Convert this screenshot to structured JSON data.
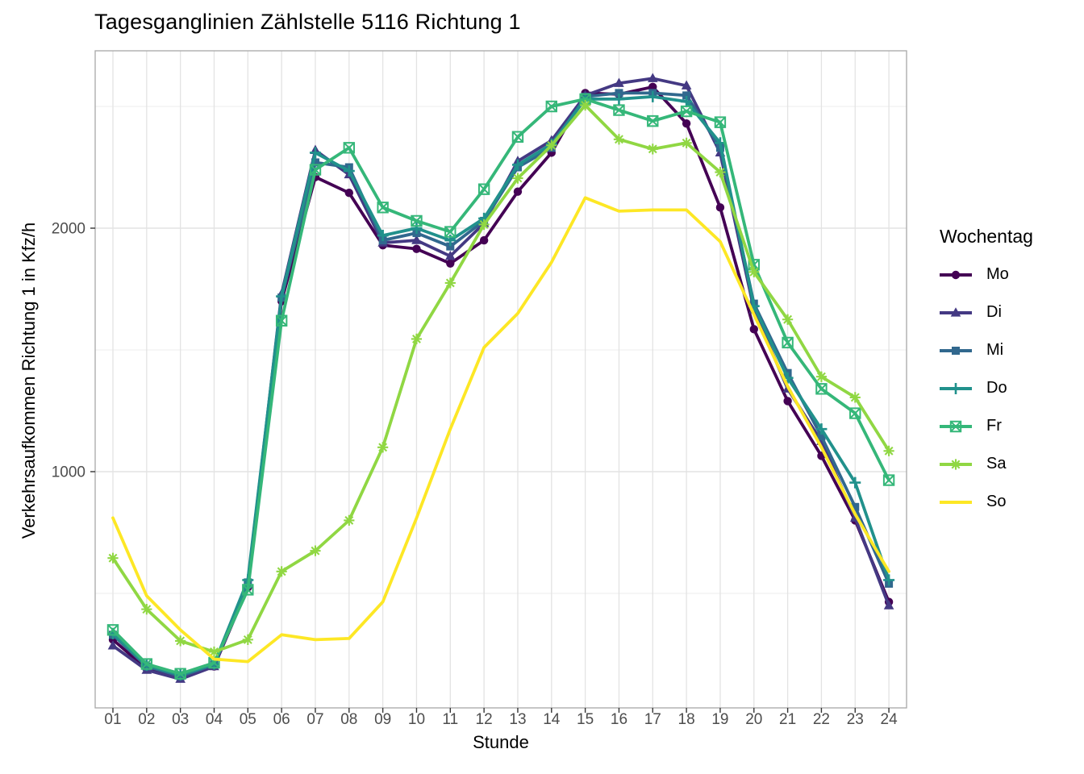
{
  "title": "Tagesganglinien Zählstelle 5116 Richtung 1",
  "chart_data": {
    "type": "line",
    "title": "Tagesganglinien Zählstelle 5116 Richtung 1",
    "xlabel": "Stunde",
    "ylabel": "Verkehrsaufkommen Richtung 1 in Kfz/h",
    "x_tick_labels": [
      "01",
      "02",
      "03",
      "04",
      "05",
      "06",
      "07",
      "08",
      "09",
      "10",
      "11",
      "12",
      "13",
      "14",
      "15",
      "16",
      "17",
      "18",
      "19",
      "20",
      "21",
      "22",
      "23",
      "24"
    ],
    "x": [
      1,
      2,
      3,
      4,
      5,
      6,
      7,
      8,
      9,
      10,
      11,
      12,
      13,
      14,
      15,
      16,
      17,
      18,
      19,
      20,
      21,
      22,
      23,
      24
    ],
    "y_major_ticks": [
      1000,
      2000
    ],
    "y_minor_ticks": [
      500,
      1500,
      2500
    ],
    "y_tick_labels": [
      "1000",
      "2000"
    ],
    "ylim": [
      30,
      2730
    ],
    "grid": true,
    "legend_title": "Wochentag",
    "legend_position": "right",
    "series": [
      {
        "name": "Mo",
        "color": "#440154",
        "marker": "circle",
        "values": [
          310,
          190,
          152,
          200,
          525,
          1700,
          2210,
          2145,
          1930,
          1915,
          1855,
          1950,
          2150,
          2310,
          2555,
          2550,
          2580,
          2430,
          2085,
          1585,
          1290,
          1065,
          800,
          465
        ]
      },
      {
        "name": "Di",
        "color": "#443983",
        "marker": "triangle",
        "values": [
          285,
          185,
          148,
          200,
          535,
          1730,
          2320,
          2220,
          1940,
          1950,
          1885,
          2020,
          2275,
          2360,
          2545,
          2595,
          2615,
          2585,
          2310,
          1665,
          1340,
          1125,
          810,
          450
        ]
      },
      {
        "name": "Mi",
        "color": "#31688E",
        "marker": "square",
        "values": [
          330,
          200,
          160,
          208,
          545,
          1715,
          2270,
          2250,
          1950,
          1980,
          1925,
          2030,
          2250,
          2330,
          2540,
          2555,
          2555,
          2545,
          2330,
          1690,
          1405,
          1145,
          855,
          540
        ]
      },
      {
        "name": "Do",
        "color": "#21918C",
        "marker": "plus",
        "values": [
          335,
          205,
          165,
          210,
          555,
          1720,
          2310,
          2235,
          1970,
          2000,
          1950,
          2040,
          2260,
          2345,
          2530,
          2530,
          2540,
          2520,
          2350,
          1680,
          1385,
          1175,
          955,
          555
        ]
      },
      {
        "name": "Fr",
        "color": "#35B779",
        "marker": "square-x",
        "values": [
          350,
          210,
          170,
          215,
          515,
          1620,
          2240,
          2330,
          2085,
          2030,
          1985,
          2160,
          2375,
          2500,
          2530,
          2485,
          2440,
          2480,
          2435,
          1850,
          1530,
          1340,
          1240,
          965
        ]
      },
      {
        "name": "Sa",
        "color": "#90D743",
        "marker": "asterisk",
        "values": [
          645,
          435,
          305,
          260,
          310,
          590,
          675,
          800,
          1100,
          1545,
          1775,
          2015,
          2205,
          2340,
          2505,
          2365,
          2325,
          2350,
          2230,
          1820,
          1625,
          1390,
          1305,
          1085
        ]
      },
      {
        "name": "So",
        "color": "#FDE725",
        "marker": "none",
        "values": [
          810,
          490,
          350,
          230,
          220,
          330,
          310,
          315,
          465,
          810,
          1175,
          1510,
          1650,
          1860,
          2125,
          2070,
          2075,
          2075,
          1945,
          1645,
          1350,
          1100,
          825,
          590
        ]
      }
    ],
    "style": {
      "grid_major_color": "#E3E3E3",
      "grid_minor_color": "#ECECEC",
      "panel_border_color": "#A8A8A8",
      "tick_color": "#343434",
      "tick_label_color": "#4D4D4D"
    }
  }
}
